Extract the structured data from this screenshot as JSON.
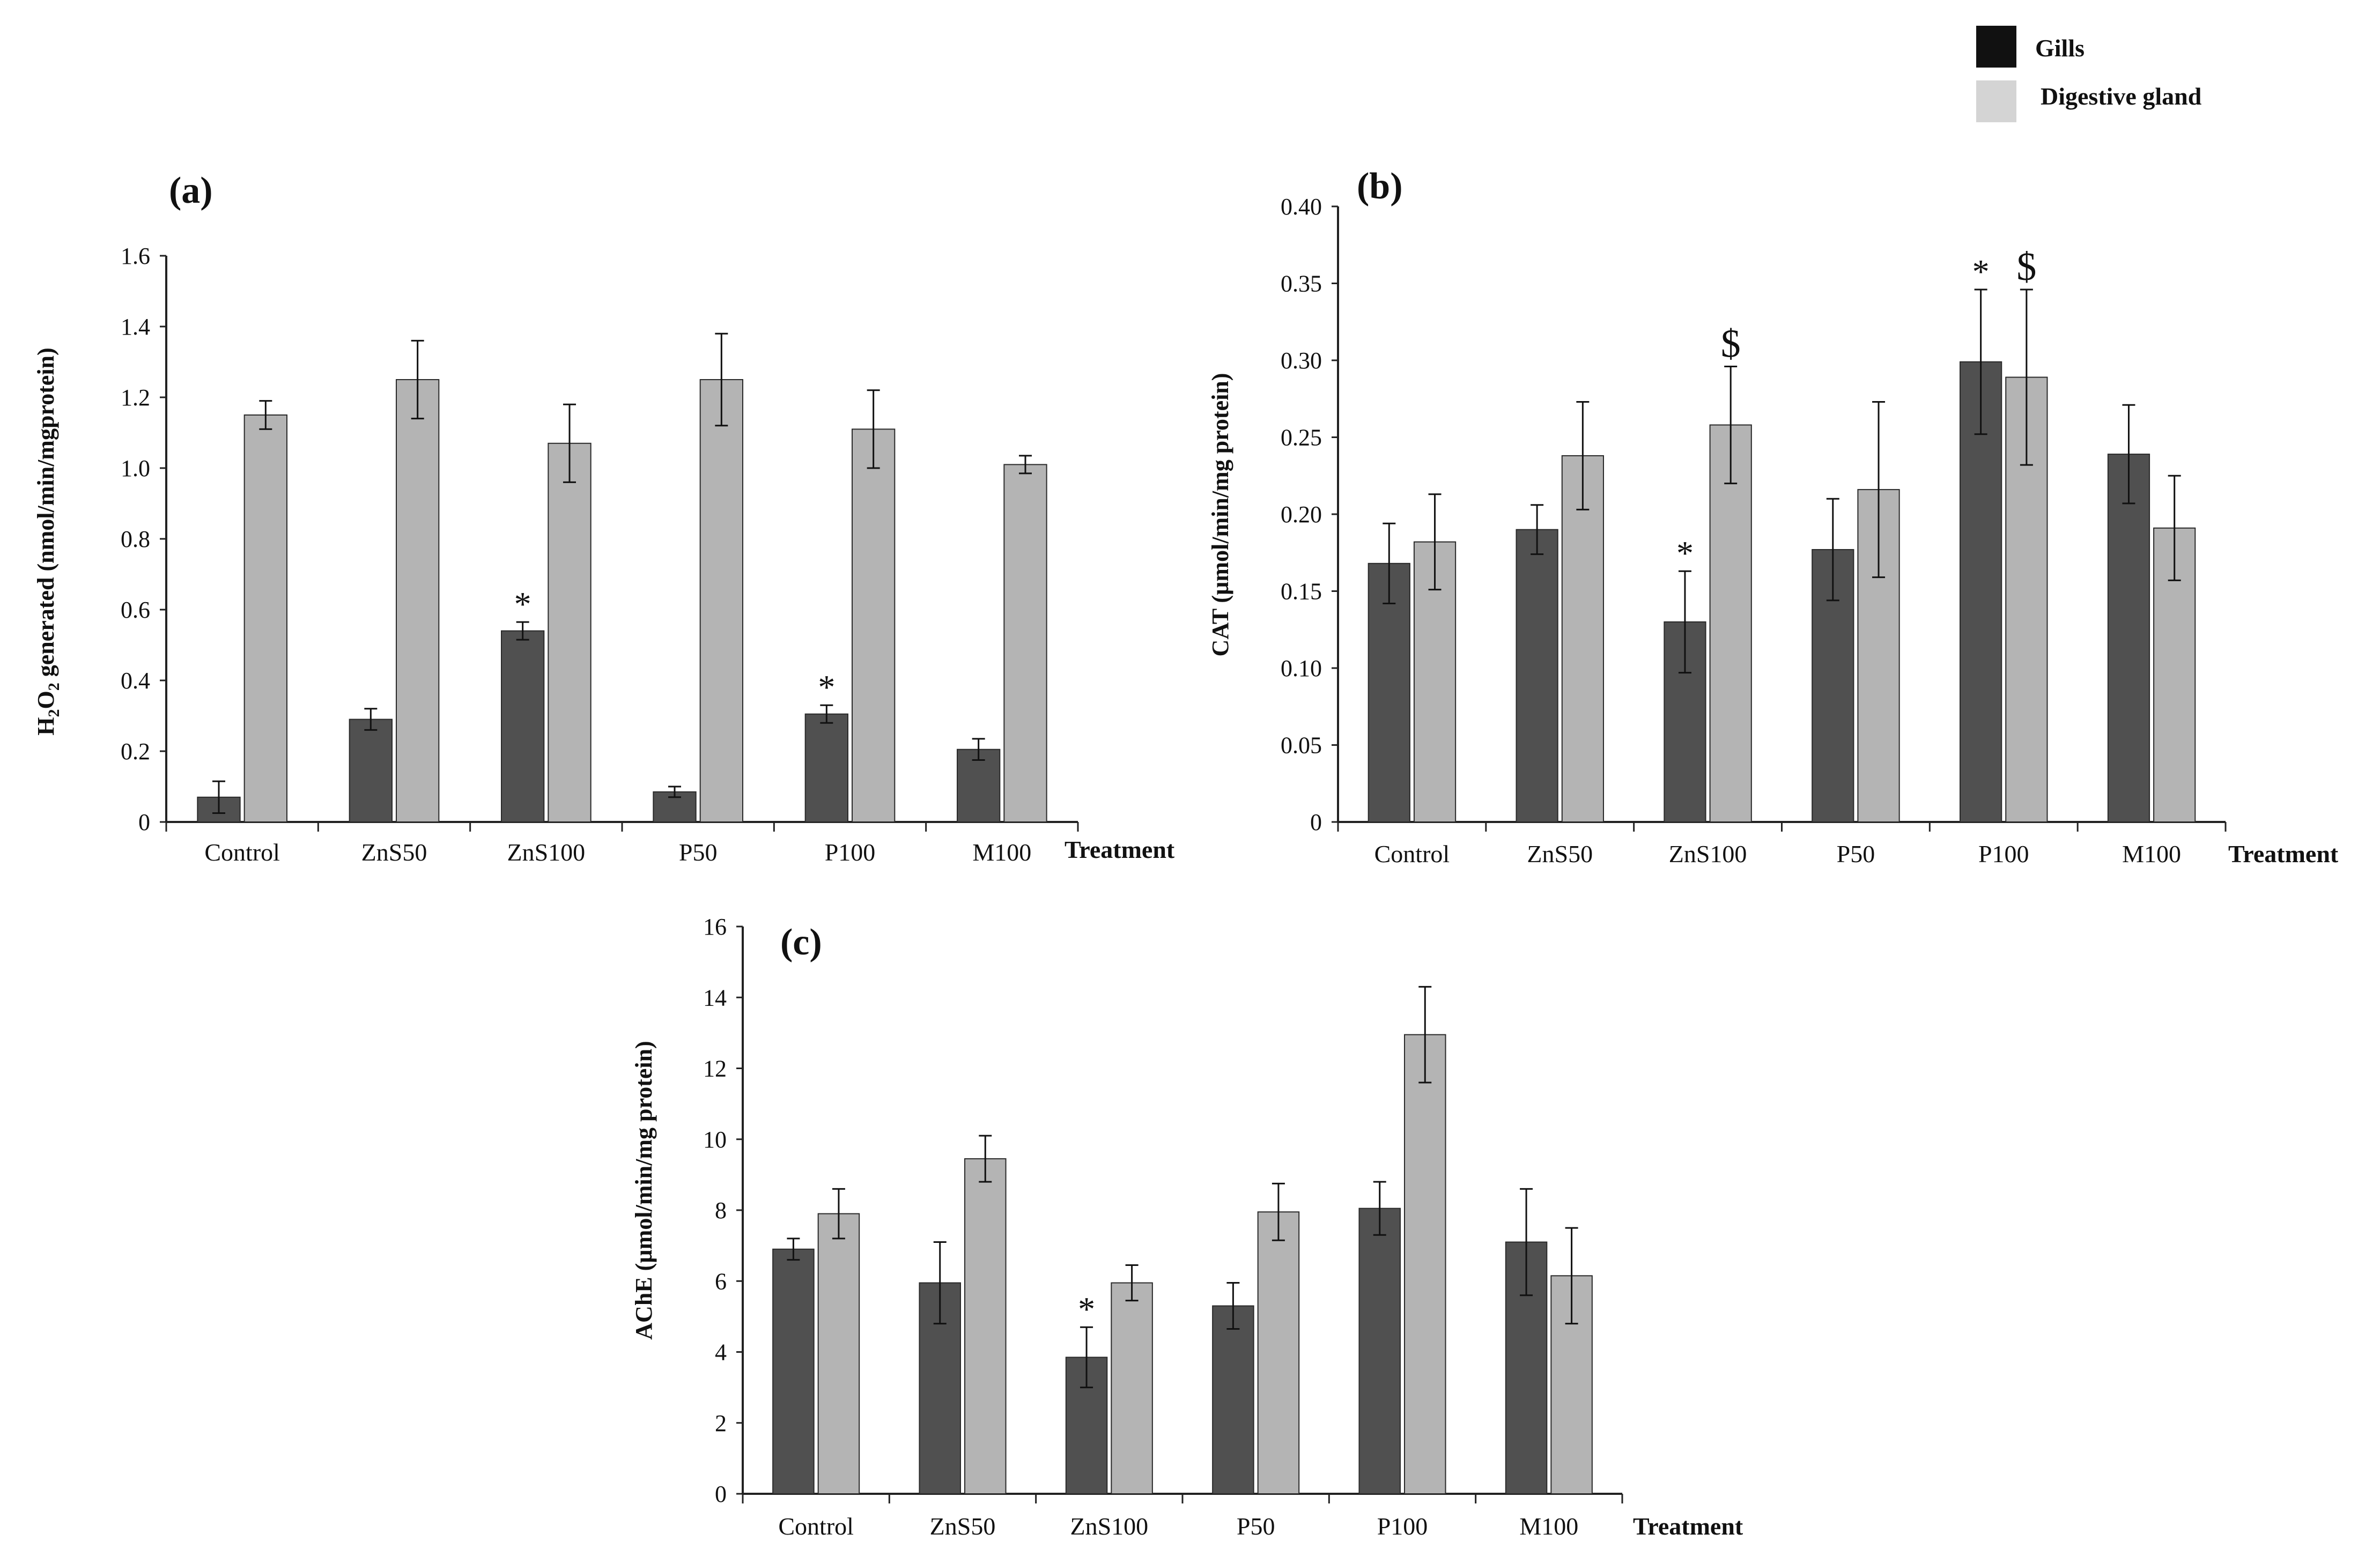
{
  "legend": {
    "items": [
      {
        "label": "Gills",
        "color": "#111111"
      },
      {
        "label": "Digestive gland",
        "color": "#d4d4d4"
      }
    ]
  },
  "colors": {
    "gills_bar": "#505050",
    "digestive_bar": "#b4b4b4",
    "axis": "#222222"
  },
  "chart_data": [
    {
      "id": "a",
      "type": "bar",
      "panel_label": "(a)",
      "title": "",
      "xlabel": "Treatment",
      "ylabel_main": "H",
      "ylabel_sub1": "2",
      "ylabel_mid": "O",
      "ylabel_sub2": "2",
      "ylabel_rest": " generated (nmol/min/mgprotein)",
      "ylim": [
        0,
        1.6
      ],
      "yticks": [
        0,
        0.2,
        0.4,
        0.6,
        0.8,
        1.0,
        1.2,
        1.4,
        1.6
      ],
      "ytick_labels": [
        "0",
        "0.2",
        "0.4",
        "0.6",
        "0.8",
        "1.0",
        "1.2",
        "1.4",
        "1.6"
      ],
      "categories": [
        "Control",
        "ZnS50",
        "ZnS100",
        "P50",
        "P100",
        "M100"
      ],
      "series": [
        {
          "name": "Gills",
          "values": [
            0.07,
            0.29,
            0.54,
            0.085,
            0.305,
            0.205
          ],
          "errors": [
            0.045,
            0.03,
            0.025,
            0.015,
            0.025,
            0.03
          ]
        },
        {
          "name": "Digestive gland",
          "values": [
            1.15,
            1.25,
            1.07,
            1.25,
            1.11,
            1.01
          ],
          "errors": [
            0.04,
            0.11,
            0.11,
            0.13,
            0.11,
            0.025
          ]
        }
      ],
      "annotations": [
        {
          "series": 0,
          "category": 2,
          "text": "*"
        },
        {
          "series": 0,
          "category": 4,
          "text": "*"
        }
      ]
    },
    {
      "id": "b",
      "type": "bar",
      "panel_label": "(b)",
      "title": "",
      "xlabel": "Treatment",
      "ylabel": "CAT (µmol/min/mg protein)",
      "ylim": [
        0,
        0.4
      ],
      "yticks": [
        0,
        0.05,
        0.1,
        0.15,
        0.2,
        0.25,
        0.3,
        0.35,
        0.4
      ],
      "ytick_labels": [
        "0",
        "0.05",
        "0.10",
        "0.15",
        "0.20",
        "0.25",
        "0.30",
        "0.35",
        "0.40"
      ],
      "categories": [
        "Control",
        "ZnS50",
        "ZnS100",
        "P50",
        "P100",
        "M100"
      ],
      "series": [
        {
          "name": "Gills",
          "values": [
            0.168,
            0.19,
            0.13,
            0.177,
            0.299,
            0.239
          ],
          "errors": [
            0.026,
            0.016,
            0.033,
            0.033,
            0.047,
            0.032
          ]
        },
        {
          "name": "Digestive gland",
          "values": [
            0.182,
            0.238,
            0.258,
            0.216,
            0.289,
            0.191
          ],
          "errors": [
            0.031,
            0.035,
            0.038,
            0.057,
            0.057,
            0.034
          ]
        }
      ],
      "annotations": [
        {
          "series": 0,
          "category": 2,
          "text": "*"
        },
        {
          "series": 0,
          "category": 4,
          "text": "*"
        },
        {
          "series": 1,
          "category": 2,
          "text": "$"
        },
        {
          "series": 1,
          "category": 4,
          "text": "$"
        }
      ]
    },
    {
      "id": "c",
      "type": "bar",
      "panel_label": "(c)",
      "title": "",
      "xlabel": "Treatment",
      "ylabel": "AChE (µmol/min/mg protein)",
      "ylim": [
        0,
        16
      ],
      "yticks": [
        0,
        2,
        4,
        6,
        8,
        10,
        12,
        14,
        16
      ],
      "ytick_labels": [
        "0",
        "2",
        "4",
        "6",
        "8",
        "10",
        "12",
        "14",
        "16"
      ],
      "categories": [
        "Control",
        "ZnS50",
        "ZnS100",
        "P50",
        "P100",
        "M100"
      ],
      "series": [
        {
          "name": "Gills",
          "values": [
            6.9,
            5.95,
            3.85,
            5.3,
            8.05,
            7.1
          ],
          "errors": [
            0.3,
            1.15,
            0.85,
            0.65,
            0.75,
            1.5
          ]
        },
        {
          "name": "Digestive gland",
          "values": [
            7.9,
            9.45,
            5.95,
            7.95,
            12.95,
            6.15
          ],
          "errors": [
            0.7,
            0.65,
            0.5,
            0.8,
            1.35,
            1.35
          ]
        }
      ],
      "annotations": [
        {
          "series": 0,
          "category": 2,
          "text": "*"
        }
      ]
    }
  ]
}
